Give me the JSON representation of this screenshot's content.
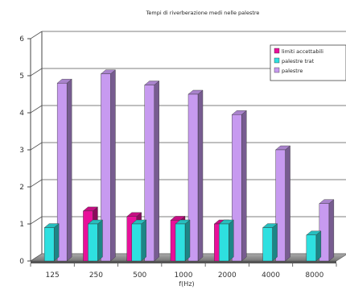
{
  "chart_data": {
    "type": "bar",
    "title": "Tempi di riverberazione medi nelle palestre",
    "xlabel": "f(Hz)",
    "ylabel": "",
    "categories": [
      "125",
      "250",
      "500",
      "1000",
      "2000",
      "4000",
      "8000"
    ],
    "ylim": [
      0,
      6
    ],
    "yticks": [
      "0",
      "1",
      "2",
      "3",
      "4",
      "5",
      "6"
    ],
    "grid": true,
    "legend_position": "top-right",
    "series": [
      {
        "name": "limiti accettabili",
        "values": [
          null,
          1.35,
          1.2,
          1.1,
          1.0,
          null,
          null
        ],
        "color": "#e8109a"
      },
      {
        "name": "palestre trat",
        "values": [
          0.9,
          1.0,
          1.0,
          1.0,
          1.0,
          0.9,
          0.7
        ],
        "color": "#2ee0e0"
      },
      {
        "name": "palestre",
        "values": [
          4.8,
          5.05,
          4.75,
          4.5,
          3.95,
          3.0,
          1.55
        ],
        "color": "#c79af0"
      }
    ]
  }
}
